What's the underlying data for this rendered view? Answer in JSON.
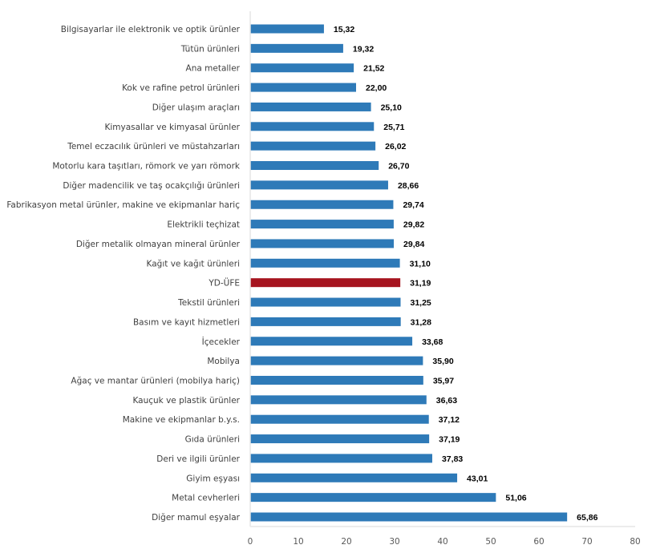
{
  "chart_data": {
    "type": "bar",
    "orientation": "horizontal",
    "title": "",
    "xlabel": "",
    "ylabel": "",
    "xlim": [
      0,
      80
    ],
    "xticks": [
      "0",
      "10",
      "20",
      "30",
      "40",
      "50",
      "60",
      "70",
      "80"
    ],
    "grid": false,
    "categories": [
      "Bilgisayarlar ile elektronik ve optik ürünler",
      "Tütün ürünleri",
      "Ana metaller",
      "Kok ve rafine petrol ürünleri",
      "Diğer ulaşım araçları",
      "Kimyasallar ve kimyasal ürünler",
      "Temel eczacılık ürünleri ve müstahzarları",
      "Motorlu kara taşıtları, römork ve yarı römork",
      "Diğer madencilik ve taş ocakçılığı ürünleri",
      "Fabrikasyon metal ürünler, makine ve ekipmanlar hariç",
      "Elektrikli teçhizat",
      "Diğer metalik olmayan mineral ürünler",
      "Kağıt ve kağıt ürünleri",
      "YD-ÜFE",
      "Tekstil ürünleri",
      "Basım ve kayıt hizmetleri",
      "İçecekler",
      "Mobilya",
      "Ağaç ve mantar ürünleri (mobilya hariç)",
      "Kauçuk ve plastik ürünler",
      "Makine ve ekipmanlar b.y.s.",
      "Gıda ürünleri",
      "Deri ve ilgili ürünler",
      "Giyim eşyası",
      "Metal cevherleri",
      "Diğer mamul eşyalar"
    ],
    "values": [
      15.32,
      19.32,
      21.52,
      22.0,
      25.1,
      25.71,
      26.02,
      26.7,
      28.66,
      29.74,
      29.82,
      29.84,
      31.1,
      31.19,
      31.25,
      31.28,
      33.68,
      35.9,
      35.97,
      36.63,
      37.12,
      37.19,
      37.83,
      43.01,
      51.06,
      65.86
    ],
    "value_labels": [
      "15,32",
      "19,32",
      "21,52",
      "22,00",
      "25,10",
      "25,71",
      "26,02",
      "26,70",
      "28,66",
      "29,74",
      "29,82",
      "29,84",
      "31,10",
      "31,19",
      "31,25",
      "31,28",
      "33,68",
      "35,90",
      "35,97",
      "36,63",
      "37,12",
      "37,19",
      "37,83",
      "43,01",
      "51,06",
      "65,86"
    ],
    "highlight_category": "YD-ÜFE",
    "colors": {
      "default": "#2e7ab8",
      "highlight": "#a6141f",
      "axis": "#e6e6e6"
    }
  }
}
